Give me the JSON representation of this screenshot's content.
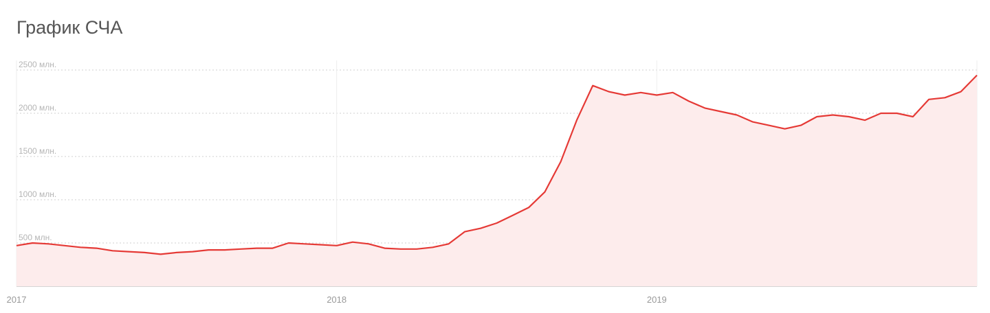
{
  "chart_data": {
    "type": "line",
    "title": "График СЧА",
    "x": [
      2017.0,
      2017.05,
      2017.1,
      2017.15,
      2017.2,
      2017.25,
      2017.3,
      2017.35,
      2017.4,
      2017.45,
      2017.5,
      2017.55,
      2017.6,
      2017.65,
      2017.7,
      2017.75,
      2017.8,
      2017.85,
      2017.9,
      2017.95,
      2018.0,
      2018.05,
      2018.1,
      2018.15,
      2018.2,
      2018.25,
      2018.3,
      2018.35,
      2018.4,
      2018.45,
      2018.5,
      2018.55,
      2018.6,
      2018.65,
      2018.7,
      2018.75,
      2018.8,
      2018.85,
      2018.9,
      2018.95,
      2019.0,
      2019.05,
      2019.1,
      2019.15,
      2019.2,
      2019.25,
      2019.3,
      2019.35,
      2019.4,
      2019.45,
      2019.5,
      2019.55,
      2019.6,
      2019.65,
      2019.7,
      2019.75,
      2019.8,
      2019.85,
      2019.9,
      2019.95,
      2020.0
    ],
    "series": [
      {
        "color": "#e53935",
        "fill": "#fdecec",
        "values": [
          470,
          500,
          490,
          470,
          450,
          440,
          410,
          400,
          390,
          370,
          390,
          400,
          420,
          420,
          430,
          440,
          440,
          500,
          490,
          480,
          470,
          510,
          490,
          440,
          430,
          430,
          450,
          490,
          630,
          670,
          730,
          820,
          910,
          1090,
          1440,
          1920,
          2320,
          2250,
          2210,
          2240,
          2210,
          2240,
          2140,
          2060,
          2020,
          1980,
          1900,
          1860,
          1820,
          1860,
          1960,
          1980,
          1960,
          1920,
          2000,
          2000,
          1960,
          2160,
          2180,
          2250,
          2440
        ]
      }
    ],
    "xlim": [
      2017,
      2020
    ],
    "xticks": [
      2017,
      2018,
      2019
    ],
    "ylim": [
      0,
      2500
    ],
    "yticks": [
      0,
      {
        "value": 500,
        "label": "500 млн."
      },
      {
        "value": 1000,
        "label": "1000 млн."
      },
      {
        "value": 1500,
        "label": "1500 млн."
      },
      {
        "value": 2000,
        "label": "2000 млн."
      },
      {
        "value": 2500,
        "label": "2500 млн."
      }
    ],
    "grid": true
  }
}
